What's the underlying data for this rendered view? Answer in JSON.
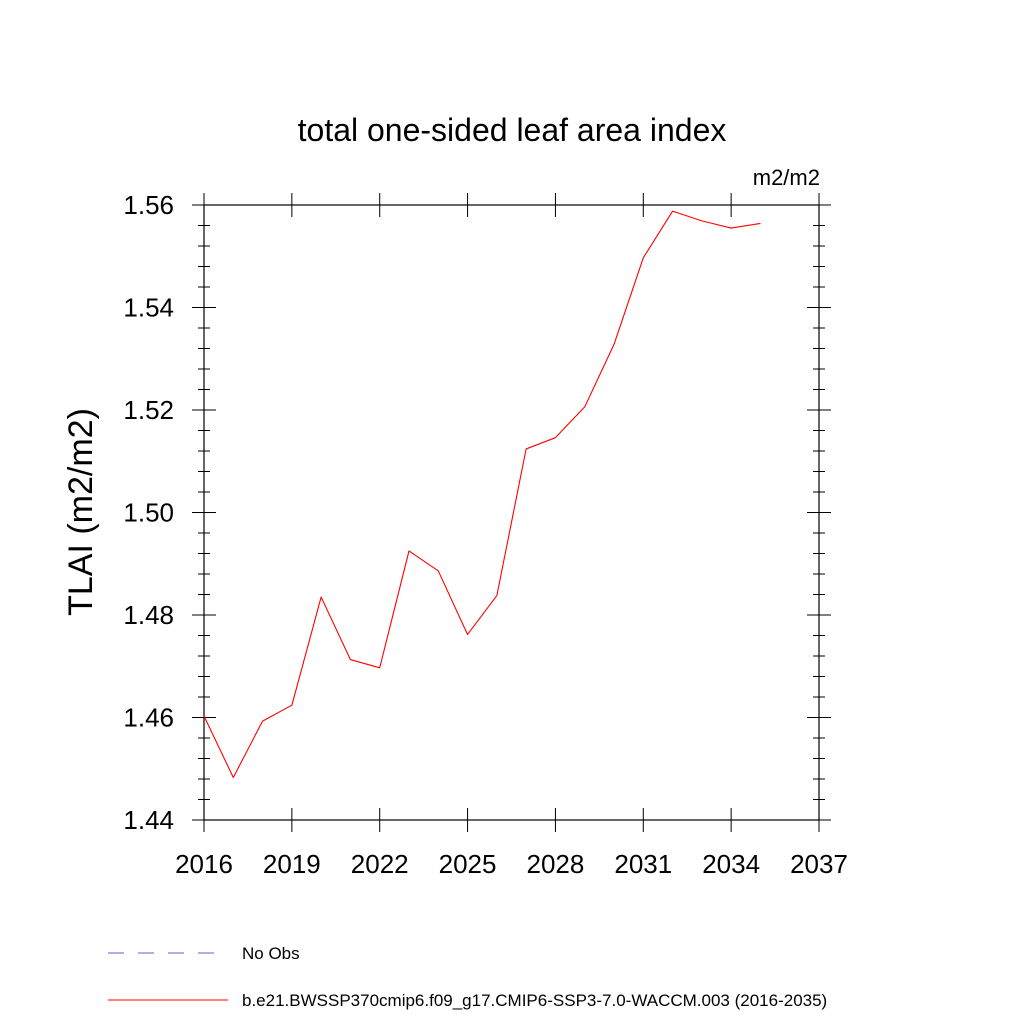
{
  "chart_data": {
    "type": "line",
    "title": "total one-sided leaf area index",
    "units_label": "m2/m2",
    "ylabel": "TLAI  (m2/m2)",
    "xlabel": "",
    "xlim": [
      2016,
      2037
    ],
    "ylim": [
      1.44,
      1.56
    ],
    "x_ticks": [
      2016,
      2019,
      2022,
      2025,
      2028,
      2031,
      2034,
      2037
    ],
    "x_tick_labels": [
      "2016",
      "2019",
      "2022",
      "2025",
      "2028",
      "2031",
      "2034",
      "2037"
    ],
    "y_ticks": [
      1.44,
      1.46,
      1.48,
      1.5,
      1.52,
      1.54,
      1.56
    ],
    "y_tick_labels": [
      "1.44",
      "1.46",
      "1.48",
      "1.50",
      "1.52",
      "1.54",
      "1.56"
    ],
    "series": [
      {
        "name": "b.e21.BWSSP370cmip6.f09_g17.CMIP6-SSP3-7.0-WACCM.003 (2016-2035)",
        "color": "#ff0000",
        "x": [
          2016,
          2017,
          2018,
          2019,
          2020,
          2021,
          2022,
          2023,
          2024,
          2025,
          2026,
          2027,
          2028,
          2029,
          2030,
          2031,
          2032,
          2033,
          2034,
          2035
        ],
        "values": [
          1.4603,
          1.4483,
          1.4593,
          1.4624,
          1.4835,
          1.4713,
          1.4697,
          1.4925,
          1.4886,
          1.4762,
          1.4838,
          1.5124,
          1.5146,
          1.5206,
          1.5328,
          1.5497,
          1.5588,
          1.5569,
          1.5555,
          1.5564
        ]
      }
    ],
    "legend": {
      "position": "bottom-left",
      "entries": [
        {
          "label": "No Obs",
          "color": "#6a5acd",
          "style": "dashed"
        },
        {
          "label": "b.e21.BWSSP370cmip6.f09_g17.CMIP6-SSP3-7.0-WACCM.003 (2016-2035)",
          "color": "#ff0000",
          "style": "solid"
        }
      ]
    }
  }
}
